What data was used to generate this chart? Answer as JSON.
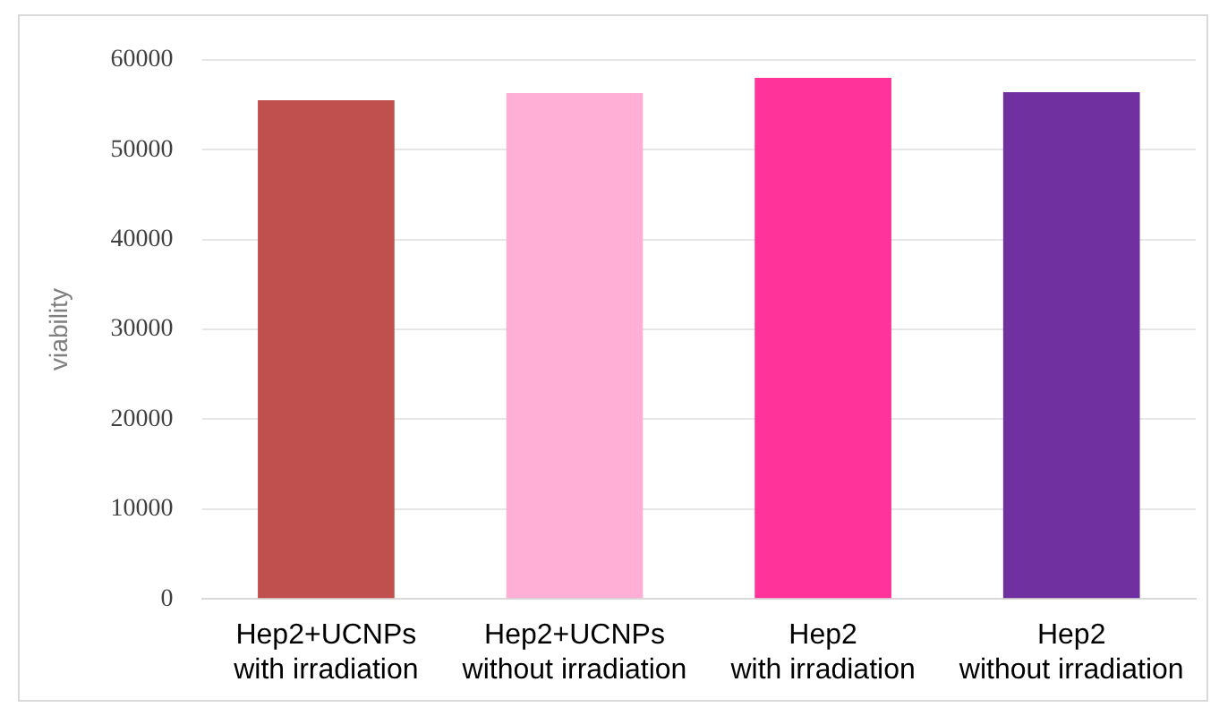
{
  "chart_data": {
    "type": "bar",
    "ylabel": "viability",
    "categories": [
      "Hep2+UCNPs\nwith irradiation",
      "Hep2+UCNPs\nwithout irradiation",
      "Hep2\nwith irradiation",
      "Hep2\nwithout irradiation"
    ],
    "values": [
      55500,
      56300,
      58000,
      56400
    ],
    "colors": [
      "#c0504d",
      "#ffaed6",
      "#ff3399",
      "#7030a0"
    ],
    "ylim": [
      0,
      60000
    ],
    "yticks": [
      0,
      10000,
      20000,
      30000,
      40000,
      50000,
      60000
    ],
    "grid": "y",
    "legend": false
  }
}
